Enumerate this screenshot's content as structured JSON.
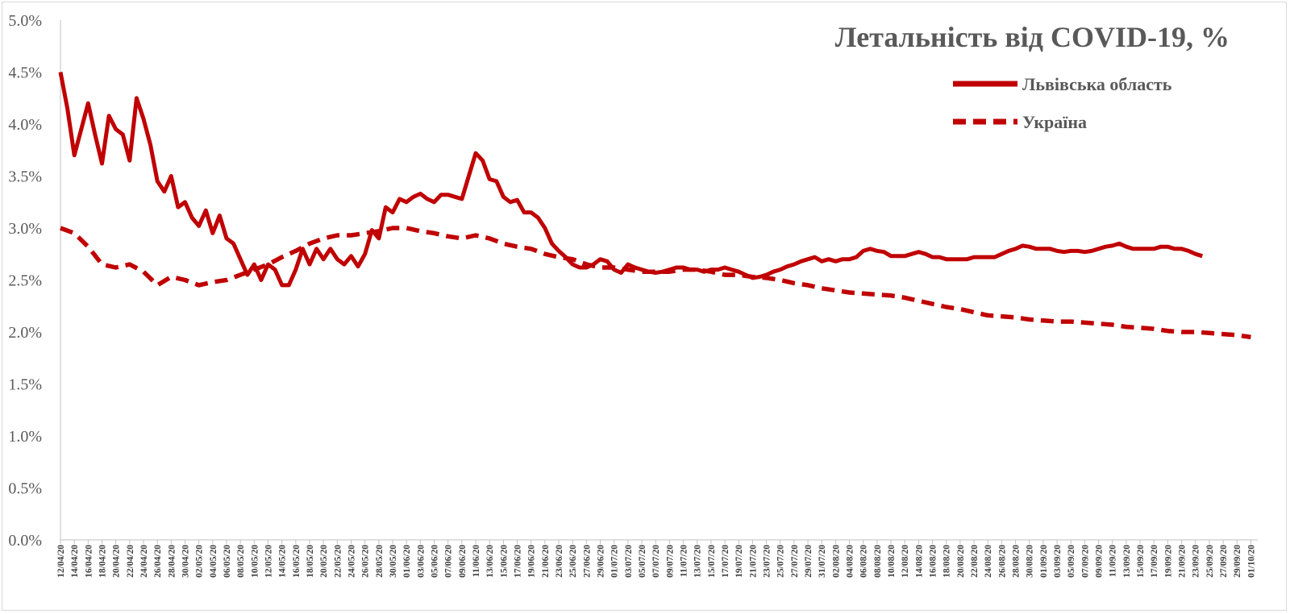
{
  "chart_data": {
    "type": "line",
    "title": "Летальність від COVID-19, %",
    "xlabel": "",
    "ylabel": "",
    "ylim": [
      0,
      5
    ],
    "y_ticks": [
      "0.0%",
      "0.5%",
      "1.0%",
      "1.5%",
      "2.0%",
      "2.5%",
      "3.0%",
      "3.5%",
      "4.0%",
      "4.5%",
      "5.0%"
    ],
    "x_start": "2020-04-12",
    "x_end": "2020-10-02",
    "x_tick_labels": [
      "12/04/20",
      "14/04/20",
      "16/04/20",
      "18/04/20",
      "20/04/20",
      "22/04/20",
      "24/04/20",
      "26/04/20",
      "28/04/20",
      "30/04/20",
      "02/05/20",
      "04/05/20",
      "06/05/20",
      "08/05/20",
      "10/05/20",
      "12/05/20",
      "14/05/20",
      "16/05/20",
      "18/05/20",
      "20/05/20",
      "22/05/20",
      "24/05/20",
      "26/05/20",
      "28/05/20",
      "30/05/20",
      "01/06/20",
      "03/06/20",
      "05/06/20",
      "07/06/20",
      "09/06/20",
      "11/06/20",
      "13/06/20",
      "15/06/20",
      "17/06/20",
      "19/06/20",
      "21/06/20",
      "23/06/20",
      "25/06/20",
      "27/06/20",
      "29/06/20",
      "01/07/20",
      "03/07/20",
      "05/07/20",
      "07/07/20",
      "09/07/20",
      "11/07/20",
      "13/07/20",
      "15/07/20",
      "17/07/20",
      "19/07/20",
      "21/07/20",
      "23/07/20",
      "25/07/20",
      "27/07/20",
      "29/07/20",
      "31/07/20",
      "02/08/20",
      "04/08/20",
      "06/08/20",
      "08/08/20",
      "10/08/20",
      "12/08/20",
      "14/08/20",
      "16/08/20",
      "18/08/20",
      "20/08/20",
      "22/08/20",
      "24/08/20",
      "26/08/20",
      "28/08/20",
      "30/08/20",
      "01/09/20",
      "03/09/20",
      "05/09/20",
      "07/09/20",
      "09/09/20",
      "11/09/20",
      "13/09/20",
      "15/09/20",
      "17/09/20",
      "19/09/20",
      "21/09/20",
      "23/09/20",
      "25/09/20",
      "27/09/20",
      "29/09/20",
      "01/10/20"
    ],
    "legend_position": "top-right",
    "grid": false,
    "series": [
      {
        "name": "Львівська область",
        "style": "solid",
        "color": "#C00000",
        "points": [
          [
            "2020-04-12",
            4.5
          ],
          [
            "2020-04-13",
            4.15
          ],
          [
            "2020-04-14",
            3.7
          ],
          [
            "2020-04-15",
            3.95
          ],
          [
            "2020-04-16",
            4.2
          ],
          [
            "2020-04-17",
            3.9
          ],
          [
            "2020-04-18",
            3.62
          ],
          [
            "2020-04-19",
            4.08
          ],
          [
            "2020-04-20",
            3.95
          ],
          [
            "2020-04-21",
            3.9
          ],
          [
            "2020-04-22",
            3.65
          ],
          [
            "2020-04-23",
            4.25
          ],
          [
            "2020-04-24",
            4.05
          ],
          [
            "2020-04-25",
            3.8
          ],
          [
            "2020-04-26",
            3.45
          ],
          [
            "2020-04-27",
            3.35
          ],
          [
            "2020-04-28",
            3.5
          ],
          [
            "2020-04-29",
            3.2
          ],
          [
            "2020-04-30",
            3.25
          ],
          [
            "2020-05-01",
            3.1
          ],
          [
            "2020-05-02",
            3.02
          ],
          [
            "2020-05-03",
            3.17
          ],
          [
            "2020-05-04",
            2.95
          ],
          [
            "2020-05-05",
            3.12
          ],
          [
            "2020-05-06",
            2.9
          ],
          [
            "2020-05-07",
            2.85
          ],
          [
            "2020-05-08",
            2.7
          ],
          [
            "2020-05-09",
            2.55
          ],
          [
            "2020-05-10",
            2.65
          ],
          [
            "2020-05-11",
            2.5
          ],
          [
            "2020-05-12",
            2.65
          ],
          [
            "2020-05-13",
            2.6
          ],
          [
            "2020-05-14",
            2.45
          ],
          [
            "2020-05-15",
            2.45
          ],
          [
            "2020-05-16",
            2.6
          ],
          [
            "2020-05-17",
            2.8
          ],
          [
            "2020-05-18",
            2.65
          ],
          [
            "2020-05-19",
            2.8
          ],
          [
            "2020-05-20",
            2.7
          ],
          [
            "2020-05-21",
            2.8
          ],
          [
            "2020-05-22",
            2.7
          ],
          [
            "2020-05-23",
            2.65
          ],
          [
            "2020-05-24",
            2.73
          ],
          [
            "2020-05-25",
            2.63
          ],
          [
            "2020-05-26",
            2.75
          ],
          [
            "2020-05-27",
            2.98
          ],
          [
            "2020-05-28",
            2.9
          ],
          [
            "2020-05-29",
            3.2
          ],
          [
            "2020-05-30",
            3.15
          ],
          [
            "2020-05-31",
            3.28
          ],
          [
            "2020-06-01",
            3.25
          ],
          [
            "2020-06-02",
            3.3
          ],
          [
            "2020-06-03",
            3.33
          ],
          [
            "2020-06-04",
            3.28
          ],
          [
            "2020-06-05",
            3.25
          ],
          [
            "2020-06-06",
            3.32
          ],
          [
            "2020-06-07",
            3.32
          ],
          [
            "2020-06-08",
            3.3
          ],
          [
            "2020-06-09",
            3.28
          ],
          [
            "2020-06-10",
            3.5
          ],
          [
            "2020-06-11",
            3.72
          ],
          [
            "2020-06-12",
            3.65
          ],
          [
            "2020-06-13",
            3.47
          ],
          [
            "2020-06-14",
            3.45
          ],
          [
            "2020-06-15",
            3.3
          ],
          [
            "2020-06-16",
            3.25
          ],
          [
            "2020-06-17",
            3.27
          ],
          [
            "2020-06-18",
            3.15
          ],
          [
            "2020-06-19",
            3.15
          ],
          [
            "2020-06-20",
            3.1
          ],
          [
            "2020-06-21",
            3.0
          ],
          [
            "2020-06-22",
            2.85
          ],
          [
            "2020-06-23",
            2.78
          ],
          [
            "2020-06-24",
            2.72
          ],
          [
            "2020-06-25",
            2.65
          ],
          [
            "2020-06-26",
            2.62
          ],
          [
            "2020-06-27",
            2.62
          ],
          [
            "2020-06-28",
            2.65
          ],
          [
            "2020-06-29",
            2.7
          ],
          [
            "2020-06-30",
            2.68
          ],
          [
            "2020-07-01",
            2.6
          ],
          [
            "2020-07-02",
            2.57
          ],
          [
            "2020-07-03",
            2.65
          ],
          [
            "2020-07-04",
            2.62
          ],
          [
            "2020-07-05",
            2.6
          ],
          [
            "2020-07-06",
            2.58
          ],
          [
            "2020-07-07",
            2.57
          ],
          [
            "2020-07-08",
            2.58
          ],
          [
            "2020-07-09",
            2.6
          ],
          [
            "2020-07-10",
            2.62
          ],
          [
            "2020-07-11",
            2.62
          ],
          [
            "2020-07-12",
            2.6
          ],
          [
            "2020-07-13",
            2.6
          ],
          [
            "2020-07-14",
            2.58
          ],
          [
            "2020-07-15",
            2.6
          ],
          [
            "2020-07-16",
            2.6
          ],
          [
            "2020-07-17",
            2.62
          ],
          [
            "2020-07-18",
            2.6
          ],
          [
            "2020-07-19",
            2.58
          ],
          [
            "2020-07-20",
            2.55
          ],
          [
            "2020-07-21",
            2.52
          ],
          [
            "2020-07-22",
            2.53
          ],
          [
            "2020-07-23",
            2.55
          ],
          [
            "2020-07-24",
            2.58
          ],
          [
            "2020-07-25",
            2.6
          ],
          [
            "2020-07-26",
            2.63
          ],
          [
            "2020-07-27",
            2.65
          ],
          [
            "2020-07-28",
            2.68
          ],
          [
            "2020-07-29",
            2.7
          ],
          [
            "2020-07-30",
            2.72
          ],
          [
            "2020-07-31",
            2.68
          ],
          [
            "2020-08-01",
            2.7
          ],
          [
            "2020-08-02",
            2.68
          ],
          [
            "2020-08-03",
            2.7
          ],
          [
            "2020-08-04",
            2.7
          ],
          [
            "2020-08-05",
            2.72
          ],
          [
            "2020-08-06",
            2.78
          ],
          [
            "2020-08-07",
            2.8
          ],
          [
            "2020-08-08",
            2.78
          ],
          [
            "2020-08-09",
            2.77
          ],
          [
            "2020-08-10",
            2.73
          ],
          [
            "2020-08-11",
            2.73
          ],
          [
            "2020-08-12",
            2.73
          ],
          [
            "2020-08-13",
            2.75
          ],
          [
            "2020-08-14",
            2.77
          ],
          [
            "2020-08-15",
            2.75
          ],
          [
            "2020-08-16",
            2.72
          ],
          [
            "2020-08-17",
            2.72
          ],
          [
            "2020-08-18",
            2.7
          ],
          [
            "2020-08-19",
            2.7
          ],
          [
            "2020-08-20",
            2.7
          ],
          [
            "2020-08-21",
            2.7
          ],
          [
            "2020-08-22",
            2.72
          ],
          [
            "2020-08-23",
            2.72
          ],
          [
            "2020-08-24",
            2.72
          ],
          [
            "2020-08-25",
            2.72
          ],
          [
            "2020-08-26",
            2.75
          ],
          [
            "2020-08-27",
            2.78
          ],
          [
            "2020-08-28",
            2.8
          ],
          [
            "2020-08-29",
            2.83
          ],
          [
            "2020-08-30",
            2.82
          ],
          [
            "2020-08-31",
            2.8
          ],
          [
            "2020-09-01",
            2.8
          ],
          [
            "2020-09-02",
            2.8
          ],
          [
            "2020-09-03",
            2.78
          ],
          [
            "2020-09-04",
            2.77
          ],
          [
            "2020-09-05",
            2.78
          ],
          [
            "2020-09-06",
            2.78
          ],
          [
            "2020-09-07",
            2.77
          ],
          [
            "2020-09-08",
            2.78
          ],
          [
            "2020-09-09",
            2.8
          ],
          [
            "2020-09-10",
            2.82
          ],
          [
            "2020-09-11",
            2.83
          ],
          [
            "2020-09-12",
            2.85
          ],
          [
            "2020-09-13",
            2.82
          ],
          [
            "2020-09-14",
            2.8
          ],
          [
            "2020-09-15",
            2.8
          ],
          [
            "2020-09-16",
            2.8
          ],
          [
            "2020-09-17",
            2.8
          ],
          [
            "2020-09-18",
            2.82
          ],
          [
            "2020-09-19",
            2.82
          ],
          [
            "2020-09-20",
            2.8
          ],
          [
            "2020-09-21",
            2.8
          ],
          [
            "2020-09-22",
            2.78
          ],
          [
            "2020-09-23",
            2.75
          ],
          [
            "2020-09-24",
            2.73
          ]
        ]
      },
      {
        "name": "Україна",
        "style": "dashed",
        "color": "#C00000",
        "points": [
          [
            "2020-04-12",
            3.0
          ],
          [
            "2020-04-14",
            2.95
          ],
          [
            "2020-04-16",
            2.82
          ],
          [
            "2020-04-18",
            2.65
          ],
          [
            "2020-04-20",
            2.62
          ],
          [
            "2020-04-22",
            2.65
          ],
          [
            "2020-04-24",
            2.58
          ],
          [
            "2020-04-26",
            2.45
          ],
          [
            "2020-04-28",
            2.53
          ],
          [
            "2020-04-30",
            2.5
          ],
          [
            "2020-05-02",
            2.45
          ],
          [
            "2020-05-04",
            2.48
          ],
          [
            "2020-05-06",
            2.5
          ],
          [
            "2020-05-08",
            2.55
          ],
          [
            "2020-05-10",
            2.6
          ],
          [
            "2020-05-12",
            2.65
          ],
          [
            "2020-05-14",
            2.72
          ],
          [
            "2020-05-16",
            2.78
          ],
          [
            "2020-05-18",
            2.85
          ],
          [
            "2020-05-20",
            2.9
          ],
          [
            "2020-05-22",
            2.93
          ],
          [
            "2020-05-24",
            2.93
          ],
          [
            "2020-05-26",
            2.95
          ],
          [
            "2020-05-28",
            2.97
          ],
          [
            "2020-05-30",
            3.0
          ],
          [
            "2020-06-01",
            3.0
          ],
          [
            "2020-06-03",
            2.97
          ],
          [
            "2020-06-05",
            2.95
          ],
          [
            "2020-06-07",
            2.92
          ],
          [
            "2020-06-09",
            2.9
          ],
          [
            "2020-06-11",
            2.93
          ],
          [
            "2020-06-13",
            2.9
          ],
          [
            "2020-06-15",
            2.85
          ],
          [
            "2020-06-17",
            2.82
          ],
          [
            "2020-06-19",
            2.8
          ],
          [
            "2020-06-21",
            2.75
          ],
          [
            "2020-06-23",
            2.72
          ],
          [
            "2020-06-25",
            2.7
          ],
          [
            "2020-06-27",
            2.65
          ],
          [
            "2020-06-29",
            2.62
          ],
          [
            "2020-07-01",
            2.62
          ],
          [
            "2020-07-03",
            2.6
          ],
          [
            "2020-07-05",
            2.58
          ],
          [
            "2020-07-07",
            2.58
          ],
          [
            "2020-07-09",
            2.58
          ],
          [
            "2020-07-11",
            2.6
          ],
          [
            "2020-07-13",
            2.6
          ],
          [
            "2020-07-15",
            2.58
          ],
          [
            "2020-07-17",
            2.55
          ],
          [
            "2020-07-19",
            2.55
          ],
          [
            "2020-07-21",
            2.53
          ],
          [
            "2020-07-23",
            2.52
          ],
          [
            "2020-07-25",
            2.5
          ],
          [
            "2020-07-27",
            2.47
          ],
          [
            "2020-07-29",
            2.45
          ],
          [
            "2020-07-31",
            2.42
          ],
          [
            "2020-08-02",
            2.4
          ],
          [
            "2020-08-04",
            2.38
          ],
          [
            "2020-08-06",
            2.37
          ],
          [
            "2020-08-08",
            2.36
          ],
          [
            "2020-08-10",
            2.35
          ],
          [
            "2020-08-12",
            2.33
          ],
          [
            "2020-08-14",
            2.3
          ],
          [
            "2020-08-16",
            2.27
          ],
          [
            "2020-08-18",
            2.24
          ],
          [
            "2020-08-20",
            2.22
          ],
          [
            "2020-08-22",
            2.19
          ],
          [
            "2020-08-24",
            2.16
          ],
          [
            "2020-08-26",
            2.15
          ],
          [
            "2020-08-28",
            2.14
          ],
          [
            "2020-08-30",
            2.12
          ],
          [
            "2020-09-01",
            2.11
          ],
          [
            "2020-09-03",
            2.1
          ],
          [
            "2020-09-05",
            2.1
          ],
          [
            "2020-09-07",
            2.09
          ],
          [
            "2020-09-09",
            2.08
          ],
          [
            "2020-09-11",
            2.07
          ],
          [
            "2020-09-13",
            2.05
          ],
          [
            "2020-09-15",
            2.04
          ],
          [
            "2020-09-17",
            2.03
          ],
          [
            "2020-09-19",
            2.01
          ],
          [
            "2020-09-21",
            2.0
          ],
          [
            "2020-09-23",
            2.0
          ],
          [
            "2020-09-25",
            1.99
          ],
          [
            "2020-09-27",
            1.98
          ],
          [
            "2020-09-29",
            1.97
          ],
          [
            "2020-10-01",
            1.95
          ]
        ]
      }
    ]
  }
}
